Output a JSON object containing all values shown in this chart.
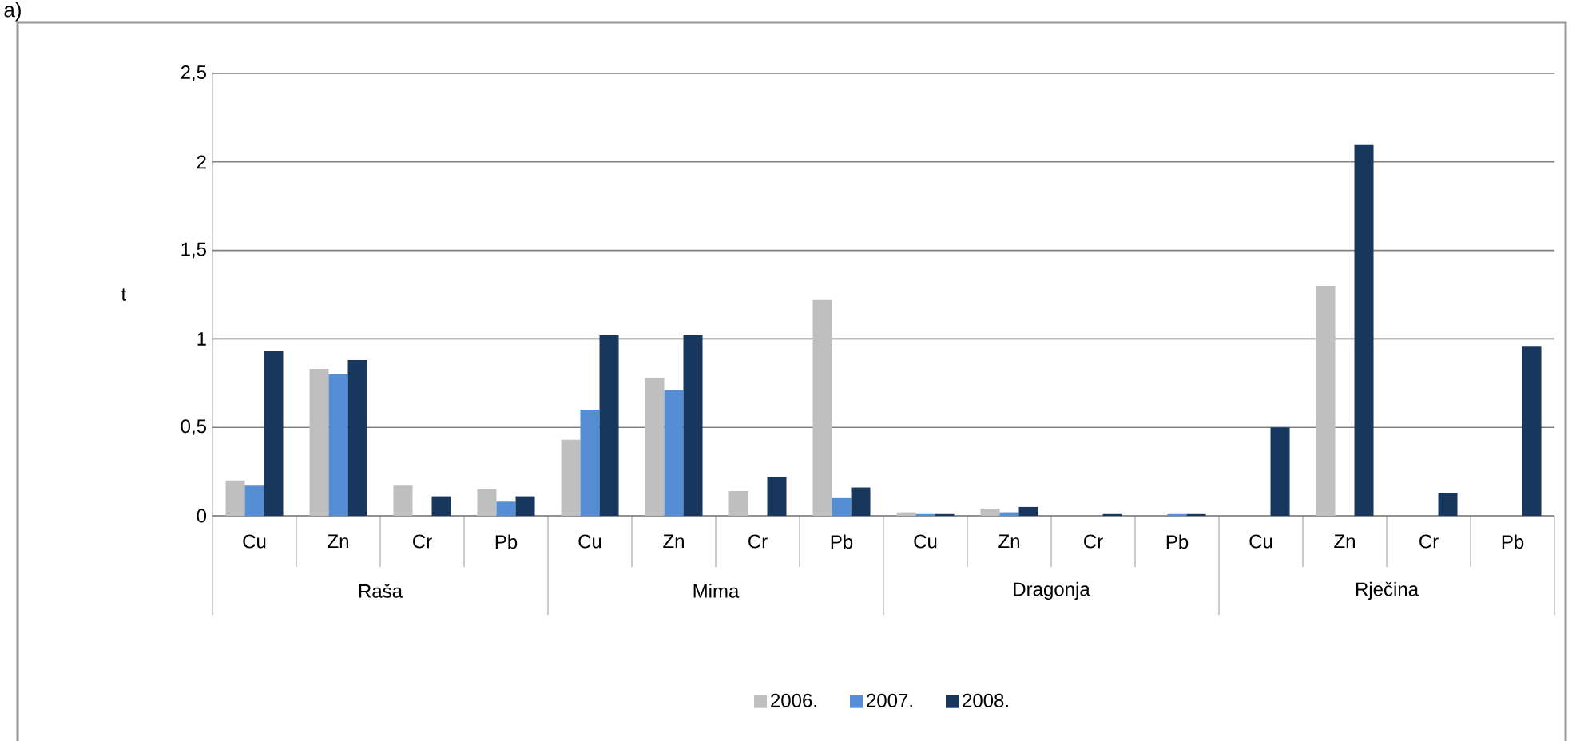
{
  "chart_data": {
    "type": "bar",
    "title": "a)",
    "ylabel": "t",
    "categories": [
      "Cu",
      "Zn",
      "Cr",
      "Pb",
      "Cu",
      "Zn",
      "Cr",
      "Pb",
      "Cu",
      "Zn",
      "Cr",
      "Pb",
      "Cu",
      "Zn",
      "Cr",
      "Pb"
    ],
    "annotations": [
      "Raša",
      "Mima",
      "Dragonja",
      "Rječina"
    ],
    "series": [
      {
        "name": "2006.",
        "color": "#bfbfbf",
        "values": [
          0.2,
          0.83,
          0.17,
          0.15,
          0.43,
          0.78,
          0.14,
          1.22,
          0.02,
          0.04,
          null,
          null,
          null,
          1.3,
          null,
          null
        ]
      },
      {
        "name": "2007.",
        "color": "#558ed5",
        "values": [
          0.17,
          0.8,
          null,
          0.08,
          0.6,
          0.71,
          null,
          0.1,
          0.01,
          0.02,
          null,
          0.01,
          null,
          null,
          null,
          null
        ]
      },
      {
        "name": "2008.",
        "color": "#17375e",
        "values": [
          0.93,
          0.88,
          0.11,
          0.11,
          1.02,
          1.02,
          0.22,
          0.16,
          0.01,
          0.05,
          0.01,
          0.01,
          0.5,
          2.1,
          0.13,
          0.96
        ]
      }
    ],
    "ylim": [
      0,
      2.5
    ],
    "yticks": [
      0,
      {
        "value": 0.5,
        "label": "0,5"
      },
      1,
      {
        "value": 1.5,
        "label": "1,5"
      },
      2,
      {
        "value": 2.5,
        "label": "2,5"
      }
    ],
    "grid": "y",
    "legend": "bottom"
  }
}
